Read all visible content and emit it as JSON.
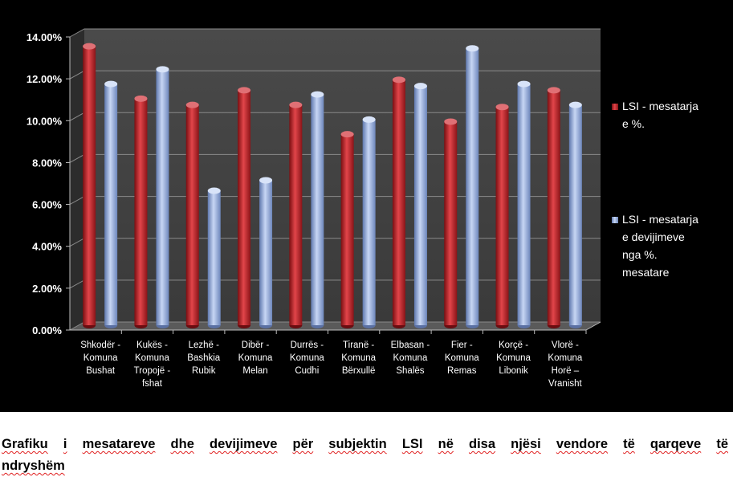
{
  "chart_data": {
    "type": "bar",
    "categories": [
      [
        "Shkodër -",
        "Komuna",
        "Bushat"
      ],
      [
        "Kukës -",
        "Komuna",
        "Tropojë -",
        "fshat"
      ],
      [
        "Lezhë -",
        "Bashkia",
        "Rubik"
      ],
      [
        "Dibër -",
        "Komuna",
        "Melan"
      ],
      [
        "Durrës -",
        "Komuna",
        "Cudhi"
      ],
      [
        "Tiranë -",
        "Komuna",
        "Bërxullë"
      ],
      [
        "Elbasan -",
        "Komuna",
        "Shalës"
      ],
      [
        "Fier -",
        "Komuna",
        "Remas"
      ],
      [
        "Korçë -",
        "Komuna",
        "Libonik"
      ],
      [
        "Vlorë -",
        "Komuna",
        "Horë –",
        "Vranisht"
      ]
    ],
    "series": [
      {
        "name": [
          "LSI - mesatarja",
          "e %."
        ],
        "color": "#c0262c",
        "values": [
          13.4,
          10.9,
          10.6,
          11.3,
          10.6,
          9.2,
          11.8,
          9.8,
          10.5,
          11.3
        ]
      },
      {
        "name": [
          "LSI - mesatarja",
          "e devijimeve",
          "nga  %.",
          "mesatare"
        ],
        "color": "#8fa9db",
        "values": [
          11.6,
          12.3,
          6.5,
          7.0,
          11.1,
          9.9,
          11.5,
          13.3,
          11.6,
          10.6
        ]
      }
    ],
    "yticks": [
      "0.00%",
      "2.00%",
      "4.00%",
      "6.00%",
      "8.00%",
      "10.00%",
      "12.00%",
      "14.00%"
    ],
    "ylim": [
      0,
      14
    ],
    "grid": true,
    "legend": "right"
  },
  "caption": {
    "line1": [
      "Grafiku",
      "i",
      "mesatareve",
      "dhe",
      "devijimeve",
      "për",
      "subjektin",
      "LSI",
      "në",
      "disa",
      "njësi",
      "vendore",
      "të",
      "qarqeve",
      "të"
    ],
    "line2": "ndryshëm"
  }
}
